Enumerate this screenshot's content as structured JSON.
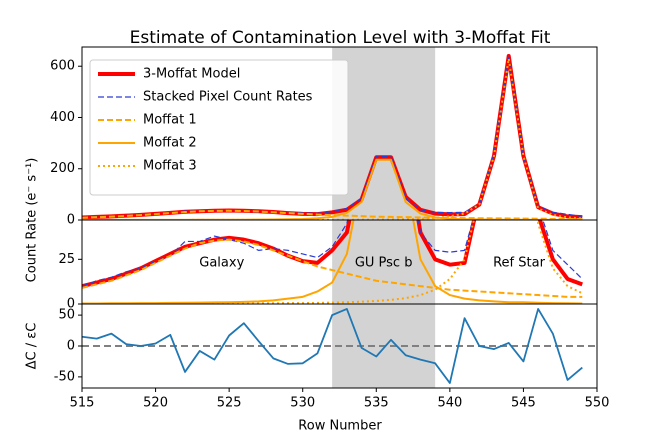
{
  "chart_data": [
    {
      "type": "line",
      "title": "Estimate of Contamination Level with 3-Moffat Fit",
      "ylabel": "Count Rate (e⁻ s⁻¹)",
      "legend": "upper left",
      "span": [
        532,
        539
      ],
      "span_color": "#d3d3d3",
      "x": [
        515,
        516,
        517,
        518,
        519,
        520,
        521,
        522,
        523,
        524,
        525,
        526,
        527,
        528,
        529,
        530,
        531,
        532,
        533,
        534,
        535,
        536,
        537,
        538,
        539,
        540,
        541,
        542,
        543,
        544,
        545,
        546,
        547,
        548,
        549
      ],
      "xlim": [
        515,
        550
      ],
      "ylim": [
        0,
        675
      ],
      "yticks": [
        0,
        200,
        400,
        600
      ],
      "series": [
        {
          "name": "3-Moffat Model",
          "color": "#ff0000",
          "style": "solid",
          "width": 4,
          "values": [
            10,
            12,
            14,
            17,
            20,
            24,
            28,
            32,
            34,
            36,
            37,
            36,
            34,
            31,
            27,
            24,
            23,
            30,
            40,
            80,
            245,
            245,
            90,
            40,
            25,
            22,
            23,
            60,
            250,
            640,
            250,
            50,
            25,
            14,
            11
          ]
        },
        {
          "name": "Stacked Pixel Count Rates",
          "color": "#2b3cd6",
          "style": "dashed",
          "width": 1.2,
          "values": [
            10,
            13,
            15,
            18,
            20,
            24,
            27,
            35,
            35,
            38,
            36,
            34,
            30,
            31,
            30,
            28,
            26,
            32,
            45,
            85,
            248,
            248,
            85,
            40,
            30,
            29,
            30,
            60,
            260,
            635,
            250,
            55,
            30,
            22,
            14
          ]
        },
        {
          "name": "Moffat 1",
          "color": "#ffa500",
          "style": "dashed",
          "width": 2,
          "values": [
            9,
            11,
            13,
            16,
            19,
            23,
            27,
            31,
            34,
            35.5,
            36,
            35,
            33,
            30,
            27,
            24,
            21,
            19,
            17,
            15,
            13,
            12,
            11,
            10,
            9,
            8,
            7.5,
            7,
            6.5,
            6,
            5.5,
            5,
            4.5,
            4,
            4
          ]
        },
        {
          "name": "Moffat 2",
          "color": "#ffa500",
          "style": "solid",
          "width": 2,
          "values": [
            0.3,
            0.3,
            0.4,
            0.4,
            0.5,
            0.5,
            0.6,
            0.7,
            0.8,
            0.9,
            1,
            1.2,
            1.5,
            2,
            3,
            4,
            7,
            12,
            28,
            70,
            235,
            235,
            70,
            25,
            10,
            5,
            3,
            2,
            1.5,
            1,
            1,
            0.7,
            0.5,
            0.4,
            0.3
          ]
        },
        {
          "name": "Moffat 3",
          "color": "#ffa500",
          "style": "dotted",
          "width": 2,
          "values": [
            0.1,
            0.1,
            0.1,
            0.1,
            0.2,
            0.2,
            0.2,
            0.2,
            0.3,
            0.3,
            0.3,
            0.3,
            0.4,
            0.4,
            0.5,
            0.5,
            0.6,
            0.8,
            1,
            1.3,
            1.7,
            2.3,
            3.3,
            5,
            8,
            14,
            25,
            60,
            250,
            630,
            250,
            45,
            20,
            10,
            6
          ]
        }
      ]
    },
    {
      "type": "line",
      "ylim": [
        0,
        47
      ],
      "yticks": [
        0,
        25
      ],
      "span": [
        532,
        539
      ],
      "span_color": "#d3d3d3",
      "annotations": [
        "Galaxy",
        "GU Psc b",
        "Ref Star"
      ]
    },
    {
      "type": "line",
      "ylabel": "ΔC / εC",
      "xlabel": "Row Number",
      "span": [
        532,
        539
      ],
      "span_color": "#d3d3d3",
      "x": [
        515,
        516,
        517,
        518,
        519,
        520,
        521,
        522,
        523,
        524,
        525,
        526,
        527,
        528,
        529,
        530,
        531,
        532,
        533,
        534,
        535,
        536,
        537,
        538,
        539,
        540,
        541,
        542,
        543,
        544,
        545,
        546,
        547,
        548,
        549
      ],
      "xlim": [
        515,
        550
      ],
      "xticks": [
        515,
        520,
        525,
        530,
        535,
        540,
        545,
        550
      ],
      "ylim": [
        -68,
        68
      ],
      "yticks": [
        -50,
        0,
        50
      ],
      "hline": 0,
      "hline_color": "#808080",
      "series": [
        {
          "color": "#1f77b4",
          "style": "solid",
          "width": 1.8,
          "values": [
            15,
            12,
            20,
            3,
            0,
            4,
            18,
            -42,
            -8,
            -22,
            17,
            37,
            8,
            -20,
            -29,
            -28,
            -12,
            50,
            60,
            -3,
            -17,
            10,
            -15,
            -22,
            -28,
            -60,
            45,
            0,
            -5,
            5,
            -25,
            60,
            20,
            -55,
            -35
          ]
        }
      ]
    }
  ]
}
